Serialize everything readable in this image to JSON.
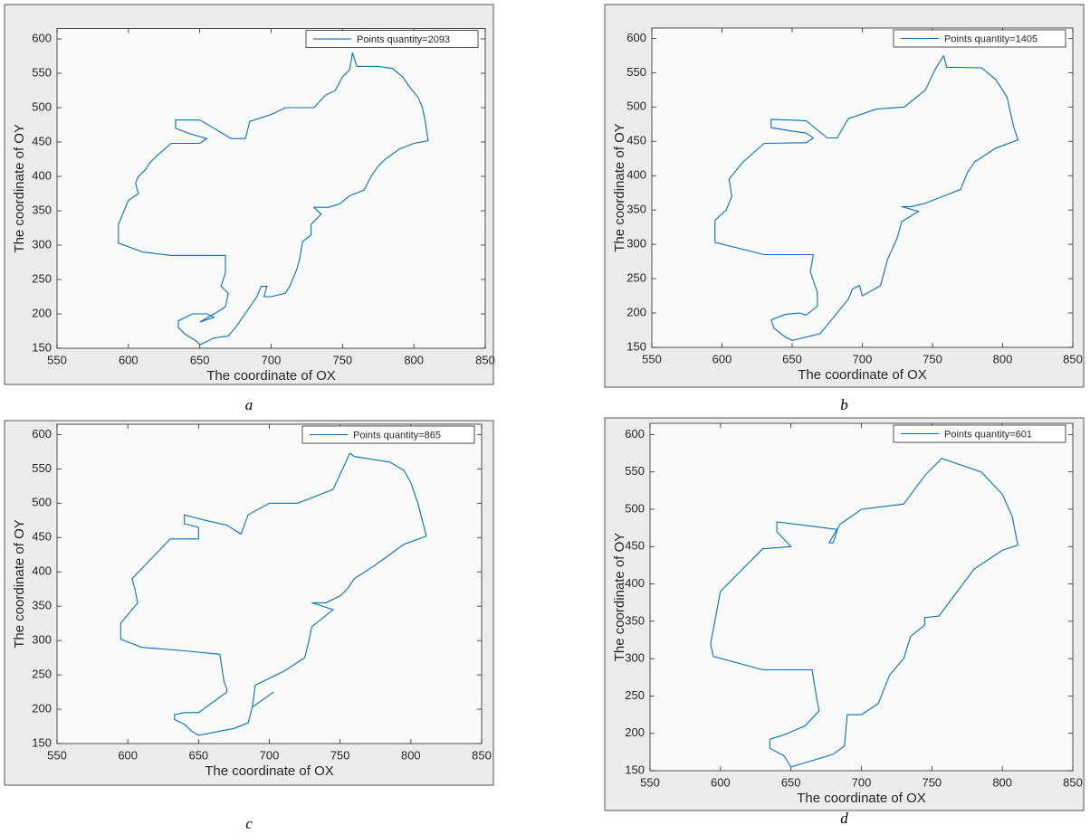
{
  "chart_data": [
    {
      "type": "line",
      "caption": "a",
      "xlabel": "The coordinate of OX",
      "ylabel": "The coordinate of OY",
      "xlim": [
        550,
        850
      ],
      "ylim": [
        150,
        615
      ],
      "xticks": [
        550,
        600,
        650,
        700,
        750,
        800,
        850
      ],
      "yticks": [
        150,
        200,
        250,
        300,
        350,
        400,
        450,
        500,
        550,
        600
      ],
      "legend": "upper right",
      "series": [
        {
          "name": "Points quantity=2093",
          "color": "#0072bd",
          "x": [
            757,
            760,
            775,
            785,
            792,
            797,
            803,
            806,
            808,
            810,
            800,
            790,
            780,
            775,
            770,
            765,
            755,
            748,
            740,
            730,
            735,
            728,
            728,
            722,
            720,
            718,
            713,
            710,
            700,
            695,
            697,
            693,
            690,
            685,
            680,
            675,
            670,
            660,
            650,
            648,
            640,
            635,
            635,
            645,
            655,
            660,
            650,
            660,
            668,
            670,
            665,
            668,
            668,
            650,
            630,
            610,
            593,
            593,
            600,
            607,
            605,
            607,
            612,
            615,
            620,
            630,
            650,
            655,
            643,
            633,
            633,
            650,
            660,
            668,
            672,
            682,
            685,
            700,
            710,
            730,
            738,
            745,
            750,
            755,
            757
          ],
          "values": [
            580,
            560,
            560,
            557,
            545,
            530,
            515,
            500,
            480,
            452,
            448,
            440,
            425,
            415,
            400,
            380,
            372,
            360,
            355,
            355,
            345,
            330,
            315,
            305,
            280,
            265,
            240,
            230,
            225,
            225,
            240,
            240,
            225,
            210,
            195,
            180,
            168,
            165,
            155,
            160,
            170,
            180,
            190,
            200,
            200,
            195,
            188,
            200,
            210,
            230,
            240,
            260,
            285,
            285,
            285,
            290,
            303,
            330,
            365,
            375,
            390,
            400,
            410,
            420,
            430,
            448,
            448,
            455,
            462,
            470,
            482,
            482,
            470,
            460,
            455,
            455,
            480,
            490,
            500,
            500,
            518,
            525,
            545,
            555,
            580
          ]
        }
      ]
    },
    {
      "type": "line",
      "caption": "b",
      "xlabel": "The coordinate of OX",
      "ylabel": "The coordinate of OY",
      "xlim": [
        550,
        850
      ],
      "ylim": [
        150,
        615
      ],
      "xticks": [
        550,
        600,
        650,
        700,
        750,
        800,
        850
      ],
      "yticks": [
        150,
        200,
        250,
        300,
        350,
        400,
        450,
        500,
        550,
        600
      ],
      "legend": "upper right",
      "series": [
        {
          "name": "Points quantity=1405",
          "color": "#0072bd",
          "x": [
            758,
            760,
            785,
            795,
            803,
            808,
            811,
            795,
            780,
            775,
            770,
            760,
            745,
            735,
            728,
            740,
            728,
            725,
            718,
            713,
            700,
            698,
            693,
            690,
            680,
            670,
            650,
            645,
            637,
            635,
            645,
            655,
            660,
            668,
            668,
            663,
            665,
            630,
            595,
            595,
            603,
            607,
            605,
            615,
            630,
            660,
            665,
            660,
            650,
            635,
            635,
            660,
            675,
            682,
            690,
            710,
            730,
            745,
            752,
            758
          ],
          "values": [
            575,
            558,
            557,
            540,
            515,
            470,
            452,
            440,
            420,
            405,
            380,
            372,
            360,
            355,
            355,
            348,
            333,
            310,
            278,
            240,
            225,
            240,
            235,
            220,
            195,
            170,
            160,
            165,
            178,
            190,
            198,
            200,
            197,
            210,
            230,
            260,
            285,
            285,
            303,
            335,
            350,
            370,
            395,
            420,
            447,
            448,
            455,
            462,
            465,
            470,
            482,
            480,
            455,
            455,
            483,
            497,
            500,
            525,
            555,
            575
          ]
        }
      ]
    },
    {
      "type": "line",
      "caption": "c",
      "xlabel": "The coordinate of OX",
      "ylabel": "The coordinate of OY",
      "xlim": [
        550,
        850
      ],
      "ylim": [
        150,
        615
      ],
      "xticks": [
        550,
        600,
        650,
        700,
        750,
        800,
        850
      ],
      "yticks": [
        150,
        200,
        250,
        300,
        350,
        400,
        450,
        500,
        550,
        600
      ],
      "legend": "upper right",
      "series": [
        {
          "name": "Points quantity=865",
          "color": "#0072bd",
          "x": [
            757,
            760,
            785,
            795,
            800,
            805,
            811,
            795,
            775,
            760,
            755,
            750,
            740,
            730,
            745,
            730,
            728,
            725,
            710,
            690,
            688,
            703,
            688,
            685,
            675,
            650,
            645,
            640,
            633,
            633,
            640,
            650,
            670,
            670,
            668,
            665,
            640,
            610,
            595,
            595,
            607,
            605,
            603,
            630,
            650,
            650,
            640,
            640,
            655,
            670,
            680,
            685,
            700,
            720,
            745,
            757
          ],
          "values": [
            573,
            568,
            560,
            548,
            530,
            500,
            452,
            440,
            410,
            390,
            375,
            365,
            355,
            355,
            345,
            320,
            300,
            275,
            255,
            235,
            203,
            225,
            203,
            180,
            172,
            162,
            168,
            178,
            185,
            192,
            195,
            195,
            225,
            230,
            240,
            280,
            285,
            290,
            302,
            325,
            355,
            375,
            390,
            448,
            448,
            465,
            470,
            483,
            475,
            468,
            455,
            483,
            500,
            500,
            520,
            573
          ]
        }
      ]
    },
    {
      "type": "line",
      "caption": "d",
      "xlabel": "The coordinate of OX",
      "ylabel": "The coordinate of OY",
      "xlim": [
        550,
        850
      ],
      "ylim": [
        150,
        615
      ],
      "xticks": [
        550,
        600,
        650,
        700,
        750,
        800,
        850
      ],
      "yticks": [
        150,
        200,
        250,
        300,
        350,
        400,
        450,
        500,
        550,
        600
      ],
      "legend": "upper right",
      "series": [
        {
          "name": "Points quantity=601",
          "color": "#0072bd",
          "x": [
            757,
            785,
            800,
            807,
            811,
            800,
            780,
            755,
            745,
            745,
            735,
            730,
            720,
            712,
            700,
            690,
            688,
            680,
            650,
            645,
            635,
            635,
            645,
            660,
            670,
            668,
            665,
            630,
            595,
            593,
            600,
            630,
            650,
            640,
            640,
            683,
            680,
            677,
            685,
            700,
            730,
            745,
            757
          ],
          "values": [
            568,
            550,
            520,
            490,
            452,
            445,
            420,
            357,
            355,
            345,
            330,
            300,
            278,
            240,
            225,
            225,
            183,
            172,
            155,
            170,
            180,
            192,
            198,
            210,
            230,
            250,
            285,
            285,
            303,
            320,
            390,
            447,
            450,
            470,
            483,
            473,
            455,
            455,
            480,
            500,
            507,
            545,
            568
          ]
        }
      ]
    }
  ]
}
